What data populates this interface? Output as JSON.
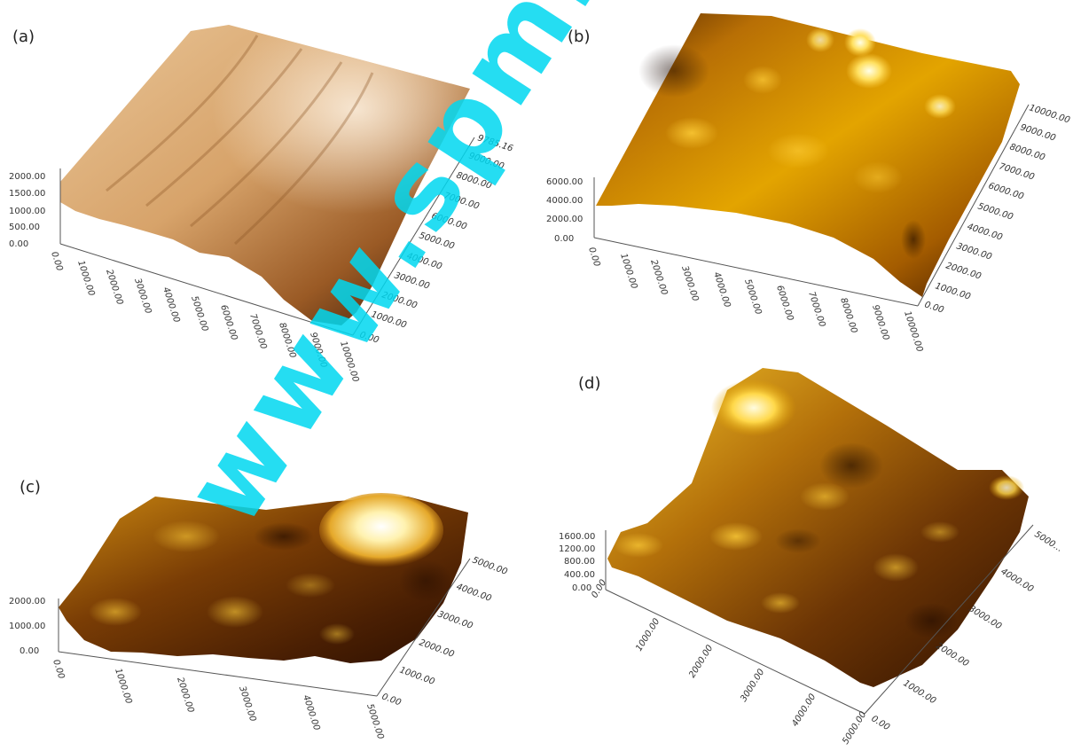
{
  "panels": [
    {
      "label": "(a)",
      "z_ticks": [
        "2000.00",
        "1500.00",
        "1000.00",
        "500.00",
        "0.00"
      ],
      "x_ticks": [
        "0.00",
        "1000.00",
        "2000.00",
        "3000.00",
        "4000.00",
        "5000.00",
        "6000.00",
        "7000.00",
        "8000.00",
        "9000.00",
        "10000.00"
      ],
      "y_ticks": [
        "0.00",
        "1000.00",
        "2000.00",
        "3000.00",
        "4000.00",
        "5000.00",
        "6000.00",
        "7000.00",
        "8000.00",
        "9000.00",
        "9785.16"
      ]
    },
    {
      "label": "(b)",
      "z_ticks": [
        "6000.00",
        "4000.00",
        "2000.00",
        "0.00"
      ],
      "x_ticks": [
        "0.00",
        "1000.00",
        "2000.00",
        "3000.00",
        "4000.00",
        "5000.00",
        "6000.00",
        "7000.00",
        "8000.00",
        "9000.00",
        "10000.00"
      ],
      "y_ticks": [
        "0.00",
        "1000.00",
        "2000.00",
        "3000.00",
        "4000.00",
        "5000.00",
        "6000.00",
        "7000.00",
        "8000.00",
        "9000.00",
        "10000.00"
      ]
    },
    {
      "label": "(c)",
      "z_ticks": [
        "2000.00",
        "1000.00",
        "0.00"
      ],
      "x_ticks": [
        "0.00",
        "1000.00",
        "2000.00",
        "3000.00",
        "4000.00",
        "5000.00"
      ],
      "y_ticks": [
        "0.00",
        "1000.00",
        "2000.00",
        "3000.00",
        "4000.00",
        "5000.00"
      ]
    },
    {
      "label": "(d)",
      "z_ticks": [
        "1600.00",
        "1200.00",
        "800.00",
        "400.00",
        "0.00"
      ],
      "x_ticks": [
        "0.00",
        "1000.00",
        "2000.00",
        "3000.00",
        "4000.00",
        "5000.00"
      ],
      "y_ticks": [
        "0.00",
        "1000.00",
        "2000.00",
        "3000.00",
        "4000.00",
        "5000..."
      ]
    }
  ],
  "watermark": "www.spm.c",
  "colors": {
    "surface_light": "#f6e2c0",
    "surface_mid": "#c8842f",
    "surface_dark": "#3a1a04",
    "gold_peak": "#fff8c8",
    "gold_mid": "#e0a000",
    "watermark": "#00d8f0"
  }
}
